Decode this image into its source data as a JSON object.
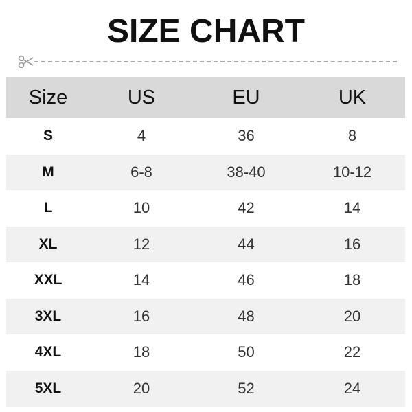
{
  "title": "SIZE CHART",
  "icons": {
    "cut_line": "scissors-icon"
  },
  "colors": {
    "header_bg": "#d9d9d9",
    "alt_row_bg": "#f1f1f1",
    "text": "#111111"
  },
  "table": {
    "headers": [
      "Size",
      "US",
      "EU",
      "UK"
    ],
    "rows": [
      [
        "S",
        "4",
        "36",
        "8"
      ],
      [
        "M",
        "6-8",
        "38-40",
        "10-12"
      ],
      [
        "L",
        "10",
        "42",
        "14"
      ],
      [
        "XL",
        "12",
        "44",
        "16"
      ],
      [
        "XXL",
        "14",
        "46",
        "18"
      ],
      [
        "3XL",
        "16",
        "48",
        "20"
      ],
      [
        "4XL",
        "18",
        "50",
        "22"
      ],
      [
        "5XL",
        "20",
        "52",
        "24"
      ]
    ]
  }
}
